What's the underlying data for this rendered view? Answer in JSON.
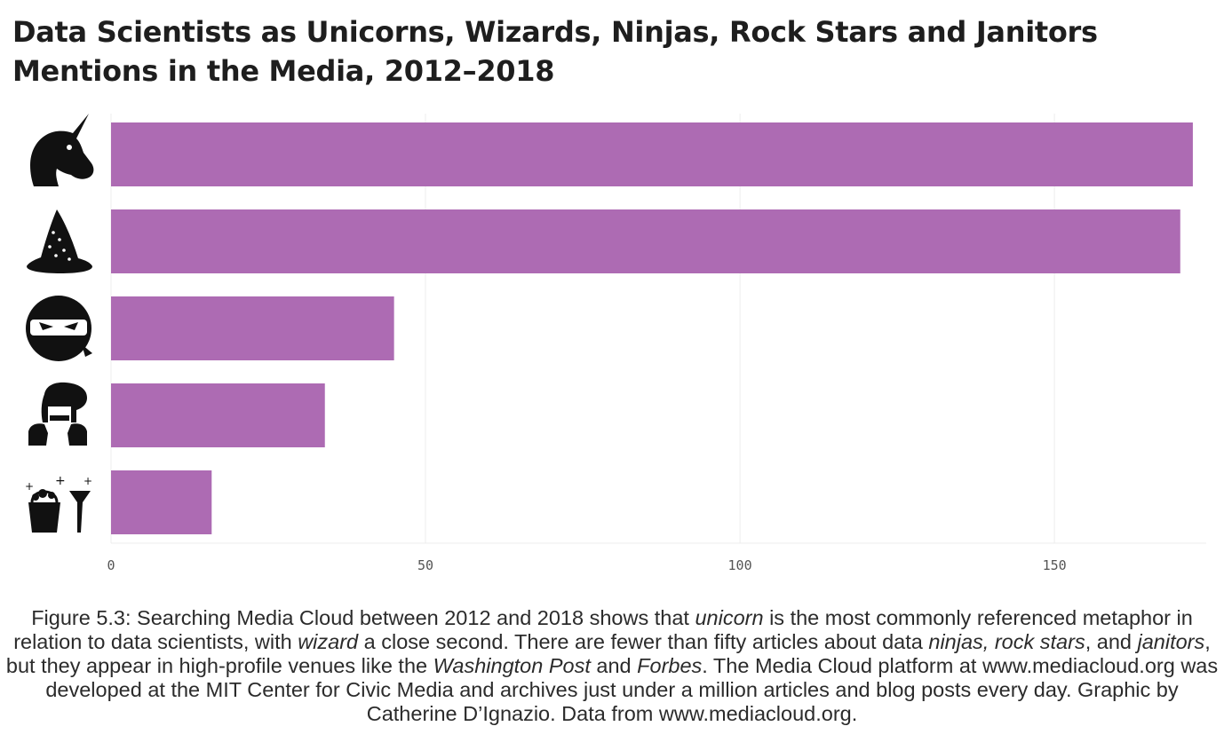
{
  "chart_data": {
    "type": "bar",
    "orientation": "horizontal",
    "title": "Data Scientists as Unicorns, Wizards, Ninjas, Rock Stars and Janitors",
    "subtitle": "Mentions in the Media, 2012–2018",
    "categories": [
      "unicorn",
      "wizard",
      "ninja",
      "rock star",
      "janitor"
    ],
    "category_icons": [
      "unicorn-icon",
      "wizard-hat-icon",
      "ninja-icon",
      "rock-star-icon",
      "janitor-icon"
    ],
    "values": [
      172,
      170,
      45,
      34,
      16
    ],
    "xlim": [
      0,
      173
    ],
    "xticks": [
      "0",
      "50",
      "100",
      "150"
    ],
    "xlabel": "",
    "ylabel": "",
    "grid": "vertical",
    "bar_color": "#ad6bb3"
  },
  "caption": {
    "segments": [
      {
        "text": "Figure 5.3: Searching Media Cloud between 2012 and 2018 shows that "
      },
      {
        "text": "unicorn",
        "italic": true
      },
      {
        "text": " is the most commonly referenced metaphor in relation to data scientists, with "
      },
      {
        "text": "wizard",
        "italic": true
      },
      {
        "text": " a close second. There are fewer than fifty articles about data "
      },
      {
        "text": "ninjas, rock stars",
        "italic": true
      },
      {
        "text": ", and "
      },
      {
        "text": "janitors",
        "italic": true
      },
      {
        "text": ", but they appear in high-profile venues like the "
      },
      {
        "text": "Washington Post",
        "italic": true
      },
      {
        "text": " and "
      },
      {
        "text": "Forbes",
        "italic": true
      },
      {
        "text": ". The Media Cloud platform at www.mediacloud.org was developed at the MIT Center for Civic Media and archives just under a million articles and blog posts every day. Graphic by Catherine D’Ignazio. Data from www.mediacloud.org."
      }
    ]
  }
}
